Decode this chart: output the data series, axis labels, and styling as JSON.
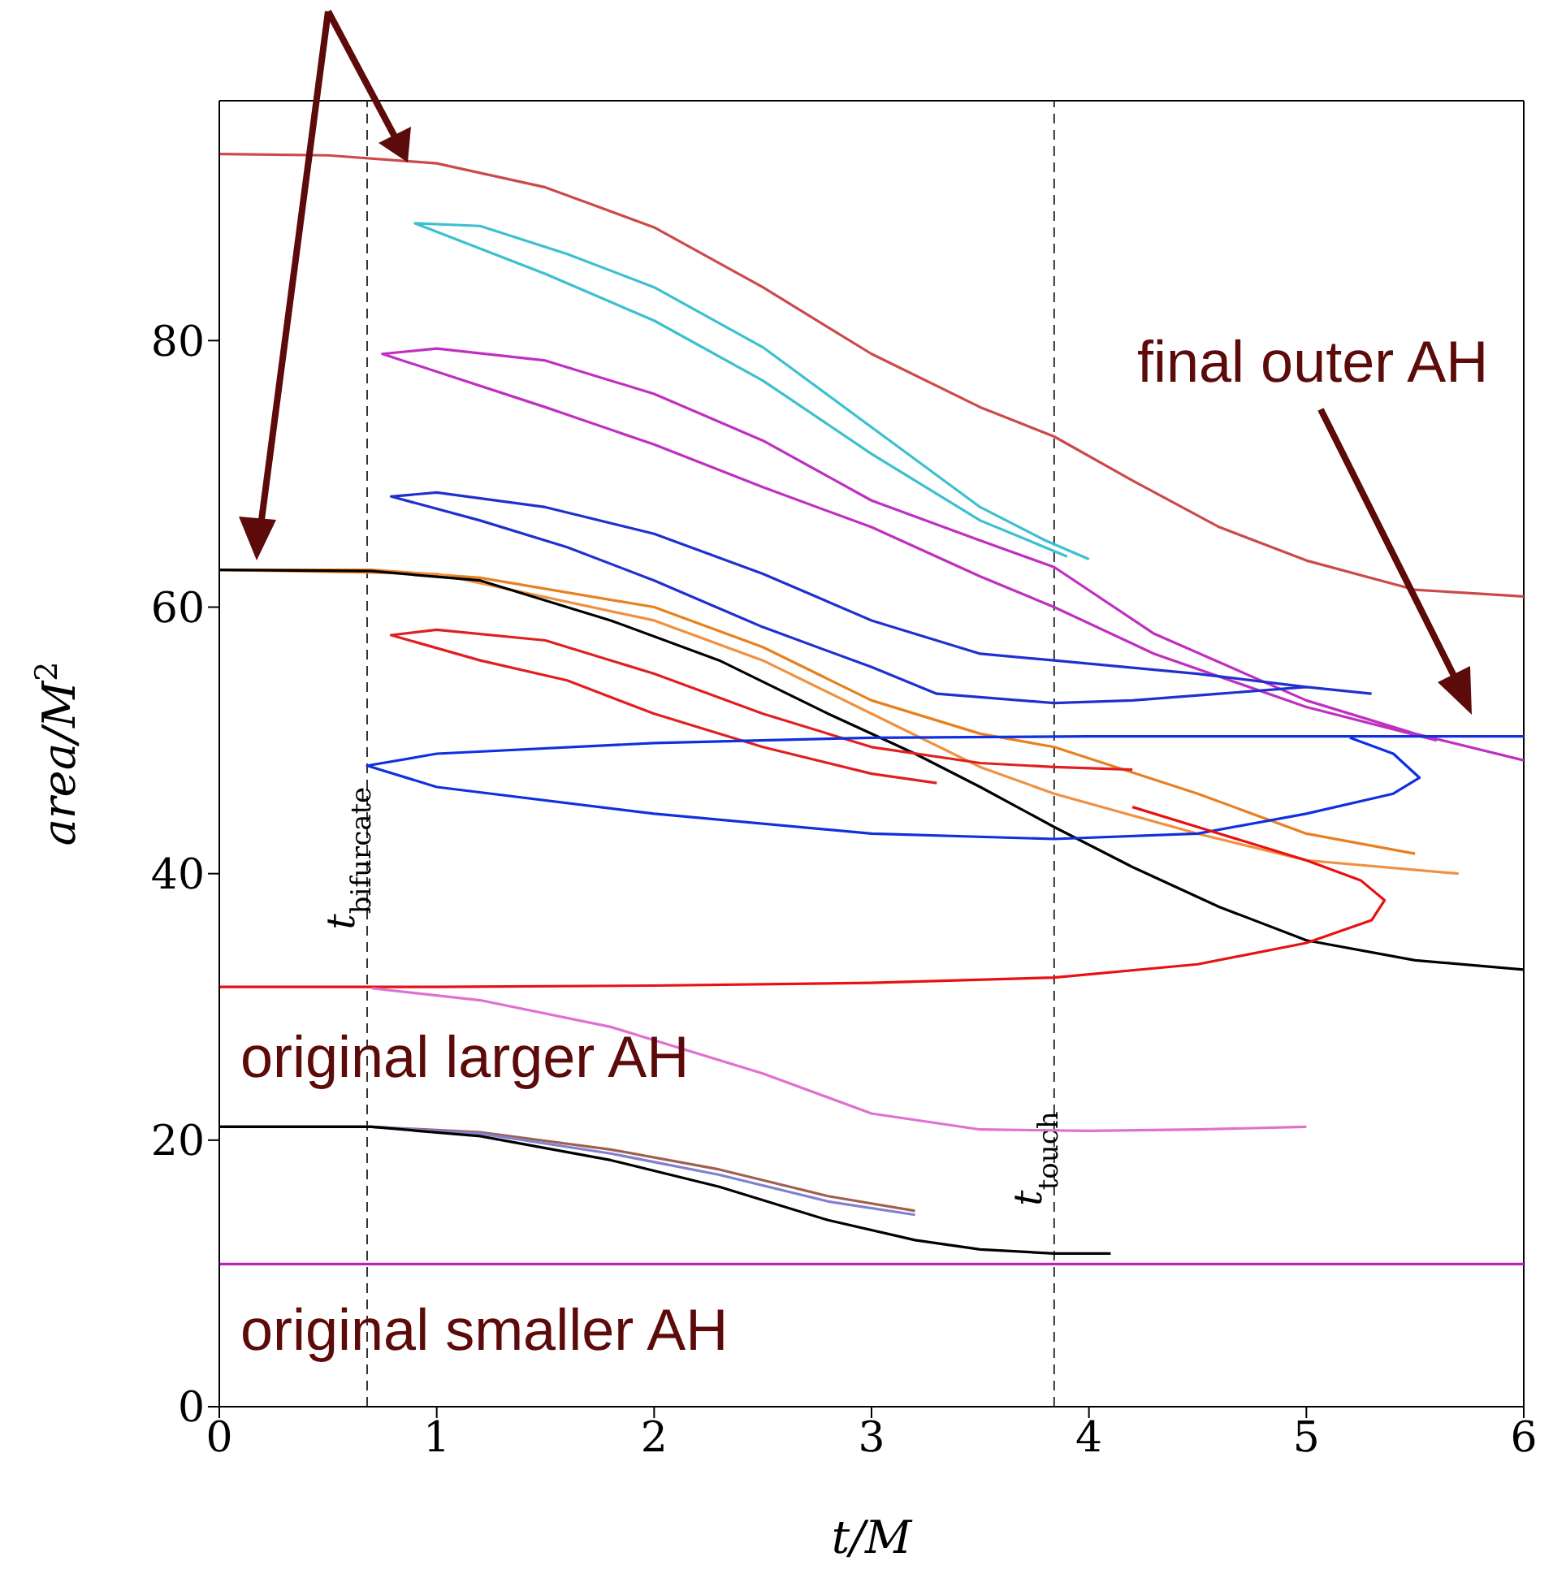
{
  "chart_data": {
    "type": "line",
    "xlabel": "t/M",
    "ylabel": "area/M$^{2}$",
    "xlim": [
      0,
      6
    ],
    "xticks": [
      0,
      1,
      2,
      3,
      4,
      5,
      6
    ],
    "ylim": [
      0,
      98
    ],
    "yticks": [
      0,
      20,
      40,
      60,
      80
    ],
    "marker": "none",
    "line_style": "solid",
    "series": [
      {
        "color": "#cc4a4a",
        "x": [
          0,
          0.5,
          1,
          1.5,
          2,
          2.5,
          3,
          3.5,
          3.84,
          4.2,
          4.6,
          5,
          5.5,
          6
        ],
        "values": [
          94,
          93.9,
          93.3,
          91.5,
          88.5,
          84,
          79,
          75,
          72.8,
          69.5,
          66,
          63.5,
          61.3,
          60.8
        ]
      },
      {
        "color": "#3cc0d0",
        "x": [
          3.9,
          3.5,
          3,
          2.5,
          2,
          1.5,
          0.9,
          1.2,
          1.6,
          2,
          2.5,
          3,
          3.5,
          3.8,
          4
        ],
        "values": [
          63.8,
          66.5,
          71.5,
          77,
          81.5,
          85,
          88.8,
          88.6,
          86.5,
          84,
          79.5,
          73.5,
          67.5,
          65,
          63.6
        ]
      },
      {
        "color": "#c030c0",
        "x": [
          5.6,
          5,
          4.3,
          3.84,
          3.5,
          3,
          2.5,
          2,
          1.5,
          0.75,
          1,
          1.5,
          2,
          2.5,
          3,
          3.5,
          3.84,
          4.3,
          5,
          5.5,
          6
        ],
        "values": [
          50,
          52.5,
          56.5,
          60,
          62.3,
          66,
          69,
          72.2,
          75,
          79,
          79.4,
          78.5,
          76,
          72.5,
          68,
          65,
          63,
          58,
          53,
          50.5,
          48.5
        ]
      },
      {
        "color": "#2030d0",
        "x": [
          5,
          4.6,
          4.2,
          3.84,
          3.3,
          3,
          2.5,
          2,
          1.6,
          1.2,
          0.79,
          1,
          1.5,
          2,
          2.5,
          3,
          3.5,
          3.84,
          4.5,
          5,
          5.3
        ],
        "values": [
          54,
          53.5,
          53,
          52.8,
          53.5,
          55.5,
          58.5,
          62,
          64.5,
          66.5,
          68.3,
          68.6,
          67.5,
          65.5,
          62.5,
          59,
          56.5,
          56,
          55,
          54,
          53.5
        ]
      },
      {
        "color": "#e88020",
        "x": [
          0,
          0.7,
          1.2,
          2,
          2.5,
          3,
          3.5,
          3.84,
          4.5,
          5,
          5.5
        ],
        "values": [
          62.8,
          62.8,
          62.2,
          60,
          57,
          53,
          50.5,
          49.5,
          46,
          43,
          41.5
        ]
      },
      {
        "color": "#f09040",
        "x": [
          0,
          1,
          2,
          2.5,
          3,
          3.5,
          3.84,
          4.5,
          5,
          5.7
        ],
        "values": [
          62.8,
          62.5,
          59,
          56,
          52,
          48,
          46,
          43,
          41,
          40
        ]
      },
      {
        "color": "#000000",
        "x": [
          0,
          0.7,
          1.2,
          1.8,
          2.3,
          2.8,
          3.2,
          3.5,
          3.84,
          4.2,
          4.6,
          5,
          5.5,
          6
        ],
        "values": [
          62.8,
          62.7,
          62,
          59,
          56,
          52,
          49,
          46.5,
          43.5,
          40.5,
          37.5,
          35,
          33.5,
          32.8
        ]
      },
      {
        "color": "#e02020",
        "x": [
          3.3,
          3,
          2.5,
          2,
          1.6,
          1.2,
          0.79,
          1,
          1.5,
          2,
          2.5,
          3,
          3.5,
          3.84,
          4.2
        ],
        "values": [
          46.8,
          47.5,
          49.5,
          52,
          54.5,
          56,
          57.9,
          58.3,
          57.5,
          55,
          52,
          49.5,
          48.3,
          48,
          47.8
        ]
      },
      {
        "color": "#1030e0",
        "x": [
          6,
          4,
          3,
          2,
          1,
          0.68,
          1,
          2,
          3,
          3.84,
          4.5,
          5,
          5.4,
          5.52,
          5.4,
          5.2
        ],
        "values": [
          50.3,
          50.3,
          50.2,
          49.8,
          49,
          48.1,
          46.5,
          44.5,
          43,
          42.6,
          43,
          44.5,
          46,
          47.2,
          49,
          50.2
        ]
      },
      {
        "color": "#e81010",
        "x": [
          0,
          1,
          2,
          3,
          3.84,
          4.5,
          5,
          5.3,
          5.36,
          5.25,
          5,
          4.6,
          4.2
        ],
        "values": [
          31.5,
          31.5,
          31.6,
          31.8,
          32.2,
          33.2,
          34.8,
          36.5,
          38,
          39.5,
          41,
          43,
          45
        ]
      },
      {
        "color": "#e070d0",
        "x": [
          0.7,
          1.2,
          1.8,
          2.5,
          3,
          3.5,
          4,
          4.5,
          5
        ],
        "values": [
          31.4,
          30.5,
          28.5,
          25,
          22,
          20.8,
          20.7,
          20.8,
          21
        ]
      },
      {
        "color": "#a06050",
        "x": [
          0,
          0.7,
          1.2,
          1.8,
          2.3,
          2.8,
          3.2
        ],
        "values": [
          21,
          21,
          20.6,
          19.3,
          17.8,
          15.8,
          14.7
        ]
      },
      {
        "color": "#8080d0",
        "x": [
          0,
          0.7,
          1.2,
          1.8,
          2.3,
          2.8,
          3.2
        ],
        "values": [
          21,
          21,
          20.5,
          19,
          17.4,
          15.4,
          14.4
        ]
      },
      {
        "color": "#000000",
        "x": [
          0,
          0.7,
          1.2,
          1.8,
          2.3,
          2.8,
          3.2,
          3.5,
          3.84,
          4.1
        ],
        "values": [
          21,
          21,
          20.3,
          18.5,
          16.5,
          14,
          12.5,
          11.8,
          11.5,
          11.5
        ]
      },
      {
        "color": "#c020c0",
        "x": [
          0,
          6
        ],
        "values": [
          10.7,
          10.7
        ]
      }
    ],
    "ref_lines": [
      {
        "axis": "x",
        "value": 0.68,
        "label": "t$_{bifurcate}$",
        "color": "#333333",
        "line_style": "dashed"
      },
      {
        "axis": "x",
        "value": 3.84,
        "label": "t$_{touch}$",
        "color": "#333333",
        "line_style": "dashed"
      }
    ],
    "annotations": [
      "final outer AH",
      "original larger AH",
      "original smaller AH"
    ]
  }
}
